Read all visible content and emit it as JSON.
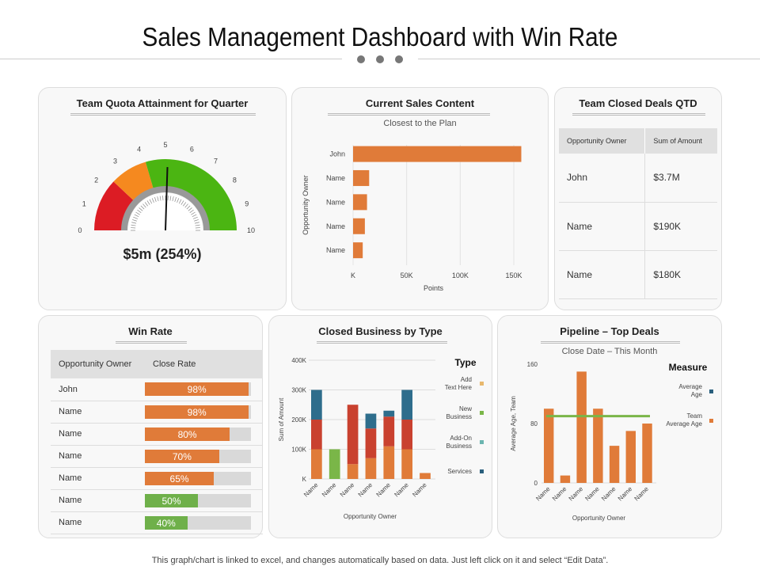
{
  "title": "Sales Management Dashboard with Win Rate",
  "footer": "This graph/chart is linked to excel, and changes automatically based on data. Just left click on it and select “Edit Data”.",
  "quota": {
    "title": "Team Quota Attainment for Quarter",
    "value_label": "$5m (254%)",
    "ticks": [
      "0",
      "1",
      "2",
      "3",
      "4",
      "5",
      "6",
      "7",
      "8",
      "9",
      "10"
    ],
    "needle_value": 5.1,
    "bands": [
      {
        "from": 0,
        "to": 2.4,
        "color": "#dc1c24"
      },
      {
        "from": 2.4,
        "to": 4.1,
        "color": "#f5891f"
      },
      {
        "from": 4.1,
        "to": 10,
        "color": "#4bb512"
      }
    ]
  },
  "sales_content": {
    "title": "Current Sales Content",
    "chart_data": {
      "type": "bar",
      "orientation": "horizontal",
      "title": "Closest to the Plan",
      "xlabel": "Points",
      "ylabel": "Opportunity Owner",
      "categories": [
        "John",
        "Name",
        "Name",
        "Name",
        "Name"
      ],
      "values": [
        157000,
        15000,
        13000,
        11000,
        9000
      ],
      "xticks": [
        "K",
        "50K",
        "100K",
        "150K"
      ],
      "xlim": [
        0,
        150000
      ],
      "color": "#e07b39"
    }
  },
  "closed_deals": {
    "title": "Team Closed Deals QTD",
    "headers": [
      "Opportunity Owner",
      "Sum of Amount"
    ],
    "rows": [
      [
        "John",
        "$3.7M"
      ],
      [
        "Name",
        "$190K"
      ],
      [
        "Name",
        "$180K"
      ]
    ]
  },
  "win_rate": {
    "title": "Win Rate",
    "headers": [
      "Opportunity Owner",
      "Close Rate"
    ],
    "rows": [
      {
        "owner": "John",
        "rate": 98,
        "label": "98%",
        "color": "#e07b39"
      },
      {
        "owner": "Name",
        "rate": 98,
        "label": "98%",
        "color": "#e07b39"
      },
      {
        "owner": "Name",
        "rate": 80,
        "label": "80%",
        "color": "#e07b39"
      },
      {
        "owner": "Name",
        "rate": 70,
        "label": "70%",
        "color": "#e07b39"
      },
      {
        "owner": "Name",
        "rate": 65,
        "label": "65%",
        "color": "#e07b39"
      },
      {
        "owner": "Name",
        "rate": 50,
        "label": "50%",
        "color": "#6fb04a"
      },
      {
        "owner": "Name",
        "rate": 40,
        "label": "40%",
        "color": "#6fb04a"
      }
    ]
  },
  "closed_business": {
    "title": "Closed Business by Type",
    "chart_data": {
      "type": "bar",
      "stacked": true,
      "xlabel": "Opportunity Owner",
      "ylabel": "Sum of Amount",
      "ylim": [
        0,
        400000
      ],
      "yticks": [
        "K",
        "100K",
        "200K",
        "300K",
        "400K"
      ],
      "categories": [
        "Name",
        "Name",
        "Name",
        "Name",
        "Name",
        "Name",
        "Name"
      ],
      "legend_title": "Type",
      "legend": [
        {
          "name": "Add Text Here",
          "color": "#e8b86d"
        },
        {
          "name": "New Business",
          "color": "#7ab648"
        },
        {
          "name": "Add-On Business",
          "color": "#6bb5b0"
        },
        {
          "name": "Services",
          "color": "#2a5f7d"
        }
      ],
      "segments": [
        {
          "color": "#e07b39",
          "values": [
            100000,
            0,
            50000,
            70000,
            110000,
            100000,
            20000
          ]
        },
        {
          "color": "#7ab648",
          "values": [
            0,
            100000,
            0,
            0,
            0,
            0,
            0
          ]
        },
        {
          "color": "#c9412f",
          "values": [
            100000,
            0,
            200000,
            100000,
            100000,
            100000,
            0
          ]
        },
        {
          "color": "#2e6d8c",
          "values": [
            100000,
            0,
            0,
            50000,
            20000,
            100000,
            0
          ]
        }
      ]
    }
  },
  "pipeline": {
    "title": "Pipeline – Top Deals",
    "chart_data": {
      "type": "bar",
      "title": "Close Date – This Month",
      "xlabel": "Opportunity Owner",
      "ylabel": "Average Age, Team",
      "ylim": [
        0,
        160
      ],
      "yticks": [
        "0",
        "80",
        "160"
      ],
      "categories": [
        "Name",
        "Name",
        "Name",
        "Name",
        "Name",
        "Name",
        "Name"
      ],
      "values": [
        100,
        10,
        150,
        100,
        50,
        70,
        80
      ],
      "line_value": 90,
      "bar_color": "#e07b39",
      "line_color": "#7ab648",
      "legend_title": "Measure",
      "legend": [
        {
          "name": "Average Age",
          "color": "#2a5f7d"
        },
        {
          "name": "Team Average Age",
          "color": "#e07b39"
        }
      ]
    }
  }
}
